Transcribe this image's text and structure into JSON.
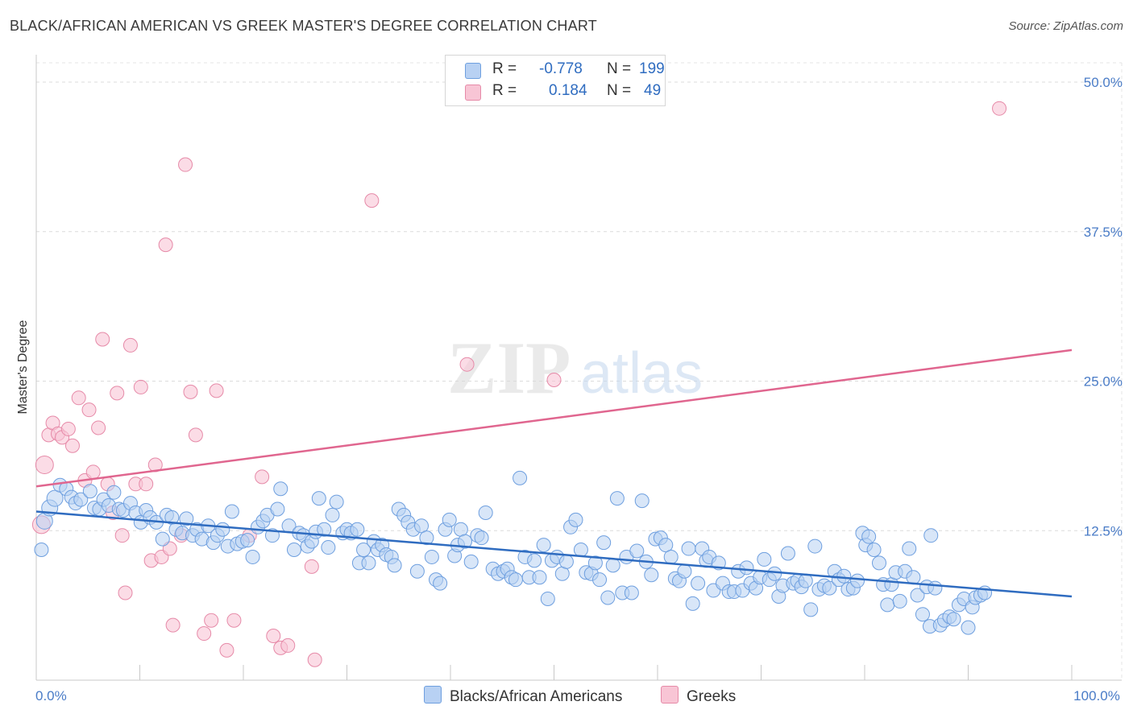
{
  "title": "BLACK/AFRICAN AMERICAN VS GREEK MASTER'S DEGREE CORRELATION CHART",
  "source": "Source: ZipAtlas.com",
  "watermark": {
    "zip": "ZIP",
    "atlas": "atlas"
  },
  "legend": {
    "r_label": "R =",
    "n_label": "N =",
    "rows": [
      {
        "r": "-0.778",
        "n": "199",
        "fill": "#b8d1f3",
        "stroke": "#6e9fdf"
      },
      {
        "r": "0.184",
        "n": "49",
        "fill": "#f8c5d5",
        "stroke": "#e68aa8"
      }
    ]
  },
  "bottom_legend": [
    {
      "label": "Blacks/African Americans",
      "fill": "#b8d1f3",
      "stroke": "#6e9fdf"
    },
    {
      "label": "Greeks",
      "fill": "#f8c5d5",
      "stroke": "#e68aa8"
    }
  ],
  "chart_data": {
    "type": "scatter",
    "ylabel": "Master's Degree",
    "xlim": [
      0,
      100
    ],
    "ylim": [
      0,
      50
    ],
    "x_tick_labels": [
      {
        "value": 0,
        "label": "0.0%"
      },
      {
        "value": 100,
        "label": "100.0%"
      }
    ],
    "y_tick_labels": [
      {
        "value": 12.5,
        "label": "12.5%"
      },
      {
        "value": 25,
        "label": "25.0%"
      },
      {
        "value": 37.5,
        "label": "37.5%"
      },
      {
        "value": 50,
        "label": "50.0%"
      }
    ],
    "grid": true,
    "colors": {
      "blue": "#6e9fdf",
      "blue_fill": "#b8d1f3",
      "blue_line": "#2f6cc0",
      "pink": "#e68aa8",
      "pink_fill": "#f8c5d5",
      "pink_line": "#e0668f"
    },
    "series": [
      {
        "name": "Blacks/African Americans",
        "trend": {
          "x": [
            0,
            100
          ],
          "y": [
            14.1,
            7.0
          ]
        },
        "points": [
          [
            0.5,
            10.9
          ],
          [
            0.8,
            13.3
          ],
          [
            1.3,
            14.4
          ],
          [
            1.8,
            15.2
          ],
          [
            2.3,
            16.3
          ],
          [
            2.9,
            16.0
          ],
          [
            3.4,
            15.3
          ],
          [
            3.8,
            14.8
          ],
          [
            4.3,
            15.1
          ],
          [
            5.2,
            15.8
          ],
          [
            5.6,
            14.4
          ],
          [
            6.1,
            14.3
          ],
          [
            6.5,
            15.1
          ],
          [
            7.0,
            14.6
          ],
          [
            7.5,
            15.7
          ],
          [
            8.0,
            14.3
          ],
          [
            8.4,
            14.2
          ],
          [
            9.1,
            14.8
          ],
          [
            9.6,
            14.0
          ],
          [
            10.1,
            13.2
          ],
          [
            10.6,
            14.2
          ],
          [
            11.0,
            13.6
          ],
          [
            11.6,
            13.2
          ],
          [
            12.2,
            11.8
          ],
          [
            12.6,
            13.8
          ],
          [
            13.1,
            13.6
          ],
          [
            13.5,
            12.6
          ],
          [
            14.1,
            12.3
          ],
          [
            14.5,
            13.5
          ],
          [
            15.1,
            12.1
          ],
          [
            15.5,
            12.6
          ],
          [
            16.0,
            11.8
          ],
          [
            16.6,
            12.9
          ],
          [
            17.1,
            11.5
          ],
          [
            17.5,
            12.1
          ],
          [
            18.0,
            12.6
          ],
          [
            18.5,
            11.2
          ],
          [
            18.9,
            14.1
          ],
          [
            19.4,
            11.4
          ],
          [
            19.9,
            11.6
          ],
          [
            20.4,
            11.7
          ],
          [
            20.9,
            10.3
          ],
          [
            21.4,
            12.8
          ],
          [
            21.9,
            13.3
          ],
          [
            22.3,
            13.8
          ],
          [
            22.8,
            12.1
          ],
          [
            23.3,
            14.3
          ],
          [
            23.6,
            16.0
          ],
          [
            24.4,
            12.9
          ],
          [
            24.9,
            10.9
          ],
          [
            25.4,
            12.3
          ],
          [
            25.8,
            12.1
          ],
          [
            26.2,
            11.2
          ],
          [
            26.6,
            11.6
          ],
          [
            27.0,
            12.4
          ],
          [
            27.3,
            15.2
          ],
          [
            27.8,
            12.6
          ],
          [
            28.2,
            11.1
          ],
          [
            28.6,
            13.8
          ],
          [
            29.0,
            14.9
          ],
          [
            29.6,
            12.3
          ],
          [
            30.0,
            12.6
          ],
          [
            30.4,
            12.3
          ],
          [
            31.0,
            12.6
          ],
          [
            31.2,
            9.8
          ],
          [
            31.6,
            10.9
          ],
          [
            32.1,
            9.8
          ],
          [
            32.6,
            11.6
          ],
          [
            33.0,
            10.9
          ],
          [
            33.4,
            11.3
          ],
          [
            33.8,
            10.5
          ],
          [
            34.3,
            10.3
          ],
          [
            34.6,
            9.6
          ],
          [
            35.0,
            14.3
          ],
          [
            35.5,
            13.8
          ],
          [
            35.9,
            13.2
          ],
          [
            36.4,
            12.6
          ],
          [
            36.8,
            9.1
          ],
          [
            37.2,
            12.9
          ],
          [
            37.7,
            11.9
          ],
          [
            38.2,
            10.3
          ],
          [
            38.6,
            8.4
          ],
          [
            39.0,
            8.1
          ],
          [
            39.5,
            12.6
          ],
          [
            39.9,
            13.4
          ],
          [
            40.4,
            10.4
          ],
          [
            40.7,
            11.3
          ],
          [
            41.0,
            12.6
          ],
          [
            41.4,
            11.6
          ],
          [
            42.0,
            9.9
          ],
          [
            42.6,
            12.1
          ],
          [
            43.0,
            11.9
          ],
          [
            43.4,
            14.0
          ],
          [
            44.1,
            9.3
          ],
          [
            44.6,
            8.9
          ],
          [
            45.1,
            9.1
          ],
          [
            45.5,
            9.3
          ],
          [
            45.9,
            8.6
          ],
          [
            46.3,
            8.4
          ],
          [
            46.7,
            16.9
          ],
          [
            47.2,
            10.3
          ],
          [
            47.6,
            8.6
          ],
          [
            48.1,
            10.0
          ],
          [
            48.6,
            8.6
          ],
          [
            49.0,
            11.3
          ],
          [
            49.4,
            6.8
          ],
          [
            49.8,
            10.0
          ],
          [
            50.3,
            10.3
          ],
          [
            50.8,
            8.9
          ],
          [
            51.2,
            9.9
          ],
          [
            51.6,
            12.8
          ],
          [
            52.1,
            13.4
          ],
          [
            52.6,
            10.9
          ],
          [
            53.1,
            9.0
          ],
          [
            53.6,
            8.9
          ],
          [
            54.0,
            9.8
          ],
          [
            54.4,
            8.4
          ],
          [
            54.8,
            11.5
          ],
          [
            55.2,
            6.9
          ],
          [
            55.7,
            9.6
          ],
          [
            56.1,
            15.2
          ],
          [
            56.6,
            7.3
          ],
          [
            57.0,
            10.3
          ],
          [
            57.5,
            7.3
          ],
          [
            58.0,
            10.8
          ],
          [
            58.5,
            15.0
          ],
          [
            58.9,
            9.9
          ],
          [
            59.4,
            8.8
          ],
          [
            59.8,
            11.8
          ],
          [
            60.3,
            11.9
          ],
          [
            60.8,
            11.3
          ],
          [
            61.3,
            10.3
          ],
          [
            61.7,
            8.5
          ],
          [
            62.1,
            8.3
          ],
          [
            62.6,
            9.1
          ],
          [
            63.0,
            11.0
          ],
          [
            63.4,
            6.4
          ],
          [
            63.9,
            8.1
          ],
          [
            64.3,
            11.0
          ],
          [
            64.7,
            10.0
          ],
          [
            65.0,
            10.3
          ],
          [
            65.4,
            7.5
          ],
          [
            65.9,
            9.8
          ],
          [
            66.3,
            8.1
          ],
          [
            66.9,
            7.4
          ],
          [
            67.4,
            7.4
          ],
          [
            67.8,
            9.1
          ],
          [
            68.2,
            7.5
          ],
          [
            68.6,
            9.4
          ],
          [
            69.0,
            8.1
          ],
          [
            69.5,
            7.7
          ],
          [
            69.9,
            8.6
          ],
          [
            70.3,
            10.1
          ],
          [
            70.8,
            8.4
          ],
          [
            71.3,
            8.9
          ],
          [
            71.7,
            7.0
          ],
          [
            72.1,
            7.9
          ],
          [
            72.6,
            10.6
          ],
          [
            73.1,
            8.1
          ],
          [
            73.5,
            8.3
          ],
          [
            73.9,
            7.8
          ],
          [
            74.3,
            8.3
          ],
          [
            74.8,
            5.9
          ],
          [
            75.2,
            11.2
          ],
          [
            75.6,
            7.6
          ],
          [
            76.1,
            7.9
          ],
          [
            76.6,
            7.7
          ],
          [
            77.1,
            9.1
          ],
          [
            77.5,
            8.4
          ],
          [
            78.0,
            8.7
          ],
          [
            78.4,
            7.6
          ],
          [
            78.9,
            7.7
          ],
          [
            79.3,
            8.3
          ],
          [
            79.8,
            12.3
          ],
          [
            80.1,
            11.3
          ],
          [
            80.4,
            12.0
          ],
          [
            80.9,
            10.9
          ],
          [
            81.4,
            9.8
          ],
          [
            81.8,
            8.0
          ],
          [
            82.2,
            6.3
          ],
          [
            82.6,
            8.0
          ],
          [
            83.0,
            9.0
          ],
          [
            83.4,
            6.6
          ],
          [
            83.9,
            9.1
          ],
          [
            84.3,
            11.0
          ],
          [
            84.7,
            8.6
          ],
          [
            85.1,
            7.1
          ],
          [
            85.6,
            5.5
          ],
          [
            86.0,
            7.8
          ],
          [
            86.3,
            4.5
          ],
          [
            86.8,
            7.7
          ],
          [
            87.3,
            4.6
          ],
          [
            87.7,
            5.0
          ],
          [
            88.2,
            5.3
          ],
          [
            88.6,
            5.1
          ],
          [
            89.1,
            6.3
          ],
          [
            89.6,
            6.8
          ],
          [
            90.0,
            4.4
          ],
          [
            90.4,
            6.1
          ],
          [
            90.7,
            6.9
          ],
          [
            91.2,
            7.1
          ],
          [
            91.6,
            7.3
          ],
          [
            86.4,
            12.1
          ]
        ]
      },
      {
        "name": "Greeks",
        "trend": {
          "x": [
            0,
            100
          ],
          "y": [
            16.2,
            27.6
          ]
        },
        "points": [
          [
            0.5,
            13.0
          ],
          [
            0.8,
            18.0
          ],
          [
            1.2,
            20.5
          ],
          [
            1.6,
            21.5
          ],
          [
            2.1,
            20.6
          ],
          [
            2.5,
            20.3
          ],
          [
            3.1,
            21.0
          ],
          [
            3.5,
            19.6
          ],
          [
            4.1,
            23.6
          ],
          [
            4.7,
            16.7
          ],
          [
            5.1,
            22.6
          ],
          [
            5.5,
            17.4
          ],
          [
            6.0,
            21.1
          ],
          [
            6.4,
            28.5
          ],
          [
            6.9,
            16.4
          ],
          [
            7.4,
            14.0
          ],
          [
            7.8,
            24.0
          ],
          [
            8.3,
            12.1
          ],
          [
            8.6,
            7.3
          ],
          [
            9.1,
            28.0
          ],
          [
            9.6,
            16.4
          ],
          [
            10.1,
            24.5
          ],
          [
            10.6,
            16.4
          ],
          [
            11.1,
            10.0
          ],
          [
            11.5,
            18.0
          ],
          [
            12.1,
            10.3
          ],
          [
            12.5,
            36.4
          ],
          [
            12.9,
            11.0
          ],
          [
            13.2,
            4.6
          ],
          [
            14.0,
            12.1
          ],
          [
            14.4,
            43.1
          ],
          [
            14.9,
            24.1
          ],
          [
            15.4,
            20.5
          ],
          [
            16.2,
            3.9
          ],
          [
            16.9,
            5.0
          ],
          [
            17.4,
            24.2
          ],
          [
            18.4,
            2.5
          ],
          [
            19.1,
            5.0
          ],
          [
            20.6,
            12.1
          ],
          [
            21.8,
            17.0
          ],
          [
            22.9,
            3.7
          ],
          [
            23.6,
            2.7
          ],
          [
            24.3,
            2.9
          ],
          [
            26.6,
            9.5
          ],
          [
            26.9,
            1.7
          ],
          [
            32.4,
            40.1
          ],
          [
            41.6,
            26.4
          ],
          [
            50.0,
            25.1
          ],
          [
            93.0,
            47.8
          ]
        ]
      }
    ]
  }
}
